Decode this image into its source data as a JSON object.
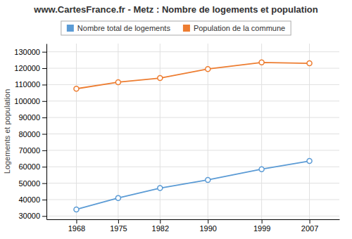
{
  "chart_data": {
    "type": "line",
    "title": "www.CartesFrance.fr - Metz : Nombre de logements et population",
    "ylabel": "Logements et population",
    "x": [
      1968,
      1975,
      1982,
      1990,
      1999,
      2007
    ],
    "series": [
      {
        "name": "Nombre total de logements",
        "color": "#5b9bd5",
        "values": [
          34000,
          41000,
          47000,
          52000,
          58500,
          63500
        ]
      },
      {
        "name": "Population de la commune",
        "color": "#ed7d31",
        "values": [
          107500,
          111500,
          114000,
          119500,
          123500,
          123000
        ]
      }
    ],
    "xlim": [
      1963,
      2012
    ],
    "xticks": [
      1968,
      1975,
      1982,
      1990,
      1999,
      2007
    ],
    "ylim": [
      28000,
      135000
    ],
    "yticks": [
      30000,
      40000,
      50000,
      60000,
      70000,
      80000,
      90000,
      100000,
      110000,
      120000,
      130000
    ],
    "grid": true,
    "legend": "top",
    "marker": "circle"
  }
}
